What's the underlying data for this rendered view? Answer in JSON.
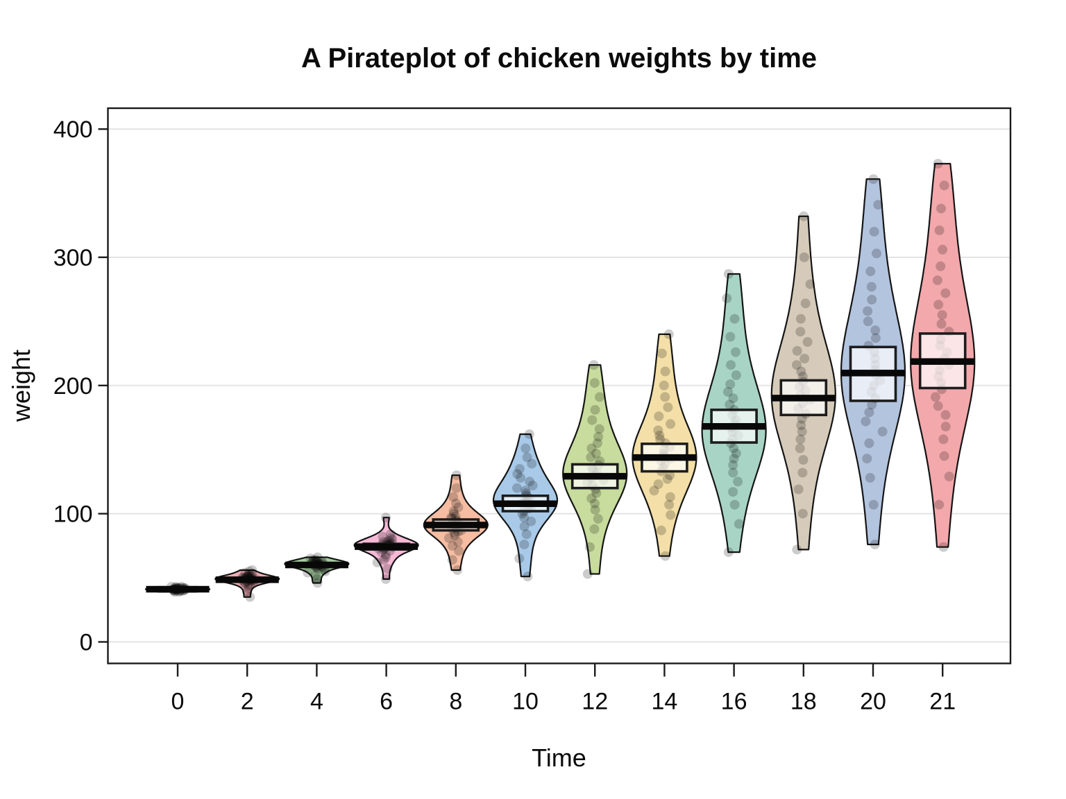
{
  "header": {
    "title": "A Pirateplot of chicken weights by time"
  },
  "axes": {
    "x": {
      "label": "Time",
      "tick_labels": [
        "0",
        "2",
        "4",
        "6",
        "8",
        "10",
        "12",
        "14",
        "16",
        "18",
        "20",
        "21"
      ]
    },
    "y": {
      "label": "weight",
      "tick_values": [
        0,
        100,
        200,
        300,
        400
      ],
      "tick_labels": [
        "0",
        "100",
        "200",
        "300",
        "400"
      ]
    }
  },
  "style": {
    "background": "#ffffff",
    "frame_color": "#1b1b1b",
    "gridline_color": "#e3e3e3",
    "bean_outline_color": "#141414",
    "mean_bar_color": "#080808",
    "inference_box_fill": "#ffffff",
    "inference_box_border": "#1c1c1c",
    "point_color": "#000000"
  },
  "chart_data": {
    "type": "pirateplot (violin/bean + jittered points + mean bar + 95% inference box)",
    "title": "A Pirateplot of chicken weights by time",
    "xlabel": "Time",
    "ylabel": "weight",
    "ylim": [
      0,
      400
    ],
    "grid": "horizontal gridlines every 100, frame box around plot, legend none",
    "categories": [
      "0",
      "2",
      "4",
      "6",
      "8",
      "10",
      "12",
      "14",
      "16",
      "18",
      "20",
      "21"
    ],
    "means": [
      41.1,
      48.5,
      60.0,
      74.3,
      91.2,
      107.8,
      129.2,
      143.8,
      168.1,
      190.2,
      209.7,
      218.7
    ],
    "groups": [
      {
        "label": "0",
        "fill": "#AEC3DF",
        "mean": 41.1,
        "inf": [
          40.6,
          41.5
        ],
        "points": [
          39,
          39,
          40,
          40,
          40,
          40,
          40,
          40,
          41,
          41,
          41,
          41,
          41,
          41,
          41,
          41,
          41,
          42,
          42,
          42,
          42,
          42,
          42,
          42,
          42,
          43,
          43,
          43,
          41,
          40
        ]
      },
      {
        "label": "2",
        "fill": "#F2AEB4",
        "mean": 48.5,
        "inf": [
          47.6,
          49.4
        ],
        "points": [
          35,
          39,
          42,
          44,
          45,
          46,
          46,
          47,
          47,
          48,
          48,
          48,
          48,
          49,
          49,
          49,
          49,
          49,
          50,
          50,
          50,
          50,
          51,
          51,
          51,
          52,
          52,
          53,
          54,
          55,
          56
        ]
      },
      {
        "label": "4",
        "fill": "#A6CBA1",
        "mean": 60.0,
        "inf": [
          58.8,
          61.2
        ],
        "points": [
          46,
          49,
          52,
          54,
          55,
          56,
          57,
          58,
          58,
          59,
          59,
          59,
          60,
          60,
          60,
          60,
          61,
          61,
          61,
          61,
          62,
          62,
          62,
          63,
          63,
          63,
          64,
          64,
          65,
          66
        ]
      },
      {
        "label": "6",
        "fill": "#F6B9D6",
        "mean": 74.3,
        "inf": [
          72.1,
          76.5
        ],
        "points": [
          49,
          57,
          62,
          64,
          66,
          68,
          70,
          71,
          72,
          73,
          73,
          74,
          74,
          74,
          75,
          75,
          75,
          76,
          76,
          76,
          77,
          77,
          78,
          78,
          79,
          80,
          81,
          82,
          84,
          97
        ]
      },
      {
        "label": "8",
        "fill": "#F6BDA3",
        "mean": 91.2,
        "inf": [
          87.0,
          95.5
        ],
        "points": [
          56,
          64,
          71,
          75,
          78,
          81,
          83,
          85,
          86,
          87,
          88,
          89,
          90,
          90,
          91,
          91,
          92,
          93,
          94,
          95,
          96,
          97,
          98,
          100,
          102,
          105,
          108,
          113,
          120,
          130
        ]
      },
      {
        "label": "10",
        "fill": "#A8CAE8",
        "mean": 107.8,
        "inf": [
          102.0,
          114.0
        ],
        "points": [
          51,
          65,
          76,
          84,
          90,
          94,
          97,
          100,
          102,
          104,
          106,
          107,
          108,
          109,
          110,
          111,
          112,
          114,
          116,
          118,
          120,
          122,
          125,
          128,
          131,
          135,
          139,
          144,
          151,
          162
        ]
      },
      {
        "label": "12",
        "fill": "#C7DC9D",
        "mean": 129.2,
        "inf": [
          120.0,
          138.5
        ],
        "points": [
          53,
          74,
          88,
          96,
          103,
          108,
          112,
          116,
          119,
          122,
          124,
          126,
          128,
          130,
          132,
          134,
          136,
          138,
          141,
          144,
          147,
          151,
          155,
          160,
          166,
          173,
          181,
          191,
          202,
          216
        ]
      },
      {
        "label": "14",
        "fill": "#F3DFA7",
        "mean": 143.8,
        "inf": [
          133.0,
          154.5
        ],
        "points": [
          67,
          87,
          99,
          107,
          113,
          118,
          123,
          127,
          130,
          133,
          136,
          139,
          141,
          143,
          145,
          147,
          150,
          152,
          155,
          158,
          161,
          165,
          170,
          176,
          183,
          191,
          200,
          211,
          225,
          240
        ]
      },
      {
        "label": "16",
        "fill": "#A7D4C5",
        "mean": 168.1,
        "inf": [
          155.5,
          181.0
        ],
        "points": [
          70,
          92,
          107,
          117,
          125,
          132,
          138,
          143,
          147,
          151,
          155,
          158,
          161,
          164,
          167,
          170,
          173,
          177,
          181,
          185,
          190,
          195,
          201,
          208,
          216,
          226,
          238,
          252,
          268,
          287
        ]
      },
      {
        "label": "18",
        "fill": "#D6CBBA",
        "mean": 190.2,
        "inf": [
          177.0,
          204.0
        ],
        "points": [
          72,
          100,
          119,
          132,
          142,
          151,
          158,
          164,
          169,
          174,
          178,
          182,
          186,
          189,
          192,
          196,
          199,
          203,
          207,
          211,
          216,
          221,
          227,
          234,
          242,
          252,
          264,
          279,
          300,
          332
        ]
      },
      {
        "label": "20",
        "fill": "#B3C4DF",
        "mean": 209.7,
        "inf": [
          188.0,
          230.0
        ],
        "points": [
          76,
          107,
          128,
          143,
          155,
          164,
          172,
          179,
          185,
          190,
          195,
          200,
          204,
          208,
          212,
          216,
          221,
          226,
          231,
          237,
          243,
          250,
          258,
          267,
          277,
          289,
          303,
          320,
          341,
          361
        ]
      },
      {
        "label": "21",
        "fill": "#F3A8AC",
        "mean": 218.7,
        "inf": [
          198.0,
          240.5
        ],
        "points": [
          74,
          107,
          129,
          145,
          158,
          168,
          177,
          184,
          191,
          197,
          202,
          207,
          212,
          216,
          221,
          226,
          231,
          236,
          242,
          248,
          255,
          263,
          272,
          282,
          293,
          306,
          321,
          338,
          356,
          373
        ]
      }
    ]
  }
}
